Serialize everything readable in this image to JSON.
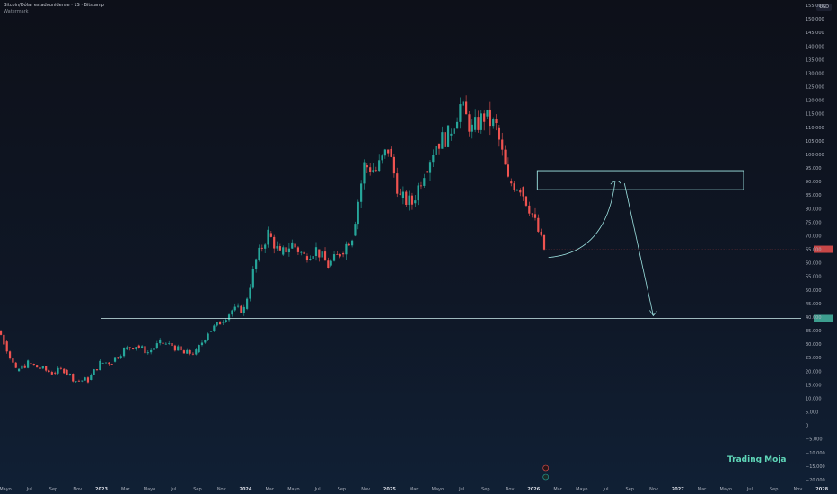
{
  "header": {
    "title": "Bitcoin/Dólar estadounidense · 1S · Bitstamp",
    "subtitle": "Watermark"
  },
  "axis": {
    "currency": "USD"
  },
  "brand": "Trading Moja",
  "chart_data": {
    "type": "candlestick",
    "yticks": [
      155000,
      150000,
      145000,
      140000,
      135000,
      130000,
      125000,
      120000,
      115000,
      110000,
      105000,
      100000,
      95000,
      90000,
      85000,
      80000,
      75000,
      70000,
      65000,
      60000,
      55000,
      50000,
      45000,
      40000,
      35000,
      30000,
      25000,
      20000,
      15000,
      10000,
      5000,
      0,
      -5000,
      -10000,
      -15000,
      -20000
    ],
    "ytick_labels": [
      "155.000",
      "150.000",
      "145.000",
      "140.000",
      "135.000",
      "130.000",
      "125.000",
      "120.000",
      "115.000",
      "110.000",
      "105.000",
      "100.000",
      "95.000",
      "90.000",
      "85.000",
      "80.000",
      "75.000",
      "70.000",
      "65.000",
      "60.000",
      "55.000",
      "50.000",
      "45.000",
      "40.000",
      "35.000",
      "30.000",
      "25.000",
      "20.000",
      "15.000",
      "10.000",
      "5.000",
      "0",
      "−5.000",
      "−10.000",
      "−15.000",
      "−20.000"
    ],
    "ylim": [
      -20000,
      155000
    ],
    "xticks": [
      {
        "label": "Mayo",
        "month": 4,
        "year": 2022
      },
      {
        "label": "Jul",
        "month": 6,
        "year": 2022
      },
      {
        "label": "Sep",
        "month": 8,
        "year": 2022
      },
      {
        "label": "Nov",
        "month": 10,
        "year": 2022
      },
      {
        "label": "2023",
        "month": 0,
        "year": 2023,
        "bold": true
      },
      {
        "label": "Mar",
        "month": 2,
        "year": 2023
      },
      {
        "label": "Mayo",
        "month": 4,
        "year": 2023
      },
      {
        "label": "Jul",
        "month": 6,
        "year": 2023
      },
      {
        "label": "Sep",
        "month": 8,
        "year": 2023
      },
      {
        "label": "Nov",
        "month": 10,
        "year": 2023
      },
      {
        "label": "2024",
        "month": 0,
        "year": 2024,
        "bold": true
      },
      {
        "label": "Mar",
        "month": 2,
        "year": 2024
      },
      {
        "label": "Mayo",
        "month": 4,
        "year": 2024
      },
      {
        "label": "Jul",
        "month": 6,
        "year": 2024
      },
      {
        "label": "Sep",
        "month": 8,
        "year": 2024
      },
      {
        "label": "Nov",
        "month": 10,
        "year": 2024
      },
      {
        "label": "2025",
        "month": 0,
        "year": 2025,
        "bold": true
      },
      {
        "label": "Mar",
        "month": 2,
        "year": 2025
      },
      {
        "label": "Mayo",
        "month": 4,
        "year": 2025
      },
      {
        "label": "Jul",
        "month": 6,
        "year": 2025
      },
      {
        "label": "Sep",
        "month": 8,
        "year": 2025
      },
      {
        "label": "Nov",
        "month": 10,
        "year": 2025
      },
      {
        "label": "2026",
        "month": 0,
        "year": 2026,
        "bold": true
      },
      {
        "label": "Mar",
        "month": 2,
        "year": 2026
      },
      {
        "label": "Mayo",
        "month": 4,
        "year": 2026
      },
      {
        "label": "Jul",
        "month": 6,
        "year": 2026
      },
      {
        "label": "Sep",
        "month": 8,
        "year": 2026
      },
      {
        "label": "Nov",
        "month": 10,
        "year": 2026
      },
      {
        "label": "2027",
        "month": 0,
        "year": 2027,
        "bold": true
      },
      {
        "label": "Mar",
        "month": 2,
        "year": 2027
      },
      {
        "label": "Mayo",
        "month": 4,
        "year": 2027
      },
      {
        "label": "Jul",
        "month": 6,
        "year": 2027
      },
      {
        "label": "Sep",
        "month": 8,
        "year": 2027
      },
      {
        "label": "Nov",
        "month": 10,
        "year": 2027
      },
      {
        "label": "2028",
        "month": 0,
        "year": 2028,
        "bold": true
      }
    ],
    "price_path": [
      {
        "month": 2,
        "year": 2022,
        "price": 45000
      },
      {
        "month": 3,
        "year": 2022,
        "price": 40000
      },
      {
        "month": 4,
        "year": 2022,
        "price": 31000
      },
      {
        "month": 5,
        "year": 2022,
        "price": 20000
      },
      {
        "month": 6,
        "year": 2022,
        "price": 23000
      },
      {
        "month": 7,
        "year": 2022,
        "price": 21000
      },
      {
        "month": 8,
        "year": 2022,
        "price": 19500
      },
      {
        "month": 9,
        "year": 2022,
        "price": 20500
      },
      {
        "month": 10,
        "year": 2022,
        "price": 16500
      },
      {
        "month": 11,
        "year": 2022,
        "price": 16800
      },
      {
        "month": 0,
        "year": 2023,
        "price": 23000
      },
      {
        "month": 1,
        "year": 2023,
        "price": 23500
      },
      {
        "month": 2,
        "year": 2023,
        "price": 28000
      },
      {
        "month": 3,
        "year": 2023,
        "price": 29500
      },
      {
        "month": 4,
        "year": 2023,
        "price": 27000
      },
      {
        "month": 5,
        "year": 2023,
        "price": 30500
      },
      {
        "month": 6,
        "year": 2023,
        "price": 29500
      },
      {
        "month": 7,
        "year": 2023,
        "price": 26500
      },
      {
        "month": 8,
        "year": 2023,
        "price": 27000
      },
      {
        "month": 9,
        "year": 2023,
        "price": 34500
      },
      {
        "month": 10,
        "year": 2023,
        "price": 38000
      },
      {
        "month": 11,
        "year": 2023,
        "price": 42500
      },
      {
        "month": 0,
        "year": 2024,
        "price": 43000
      },
      {
        "month": 1,
        "year": 2024,
        "price": 61000
      },
      {
        "month": 2,
        "year": 2024,
        "price": 71000
      },
      {
        "month": 3,
        "year": 2024,
        "price": 63000
      },
      {
        "month": 4,
        "year": 2024,
        "price": 67000
      },
      {
        "month": 5,
        "year": 2024,
        "price": 62500
      },
      {
        "month": 6,
        "year": 2024,
        "price": 65000
      },
      {
        "month": 7,
        "year": 2024,
        "price": 59000
      },
      {
        "month": 8,
        "year": 2024,
        "price": 63500
      },
      {
        "month": 9,
        "year": 2024,
        "price": 70000
      },
      {
        "month": 10,
        "year": 2024,
        "price": 96000
      },
      {
        "month": 11,
        "year": 2024,
        "price": 94000
      },
      {
        "month": 0,
        "year": 2025,
        "price": 102000
      },
      {
        "month": 1,
        "year": 2025,
        "price": 84000
      },
      {
        "month": 2,
        "year": 2025,
        "price": 82000
      },
      {
        "month": 3,
        "year": 2025,
        "price": 94000
      },
      {
        "month": 4,
        "year": 2025,
        "price": 104000
      },
      {
        "month": 5,
        "year": 2025,
        "price": 107000
      },
      {
        "month": 6,
        "year": 2025,
        "price": 118000
      },
      {
        "month": 7,
        "year": 2025,
        "price": 109000
      },
      {
        "month": 8,
        "year": 2025,
        "price": 114000
      },
      {
        "month": 9,
        "year": 2025,
        "price": 110000
      },
      {
        "month": 10,
        "year": 2025,
        "price": 90000
      },
      {
        "month": 11,
        "year": 2025,
        "price": 88000
      },
      {
        "month": 0,
        "year": 2026,
        "price": 78000
      },
      {
        "month": 1,
        "year": 2026,
        "price": 65000
      }
    ],
    "current_price": 65000,
    "support_level": 39500,
    "resistance_zone": {
      "from_month": 0,
      "from_year": 2026,
      "to_month": 9,
      "to_year": 2027,
      "top": 94000,
      "bottom": 87000
    },
    "projection_curve": {
      "start_month": 1,
      "start_year": 2026,
      "start_price": 62000,
      "end_month": 7,
      "end_year": 2026,
      "end_price": 90000
    },
    "projection_arrow": {
      "start_month": 8,
      "start_year": 2026,
      "start_price": 90000,
      "end_month": 11,
      "end_year": 2026,
      "end_price": 40500
    },
    "colors": {
      "up": "#26a69a",
      "down": "#ef5350",
      "drawing": "#9ee3e1",
      "support": "#cfeeee"
    }
  }
}
